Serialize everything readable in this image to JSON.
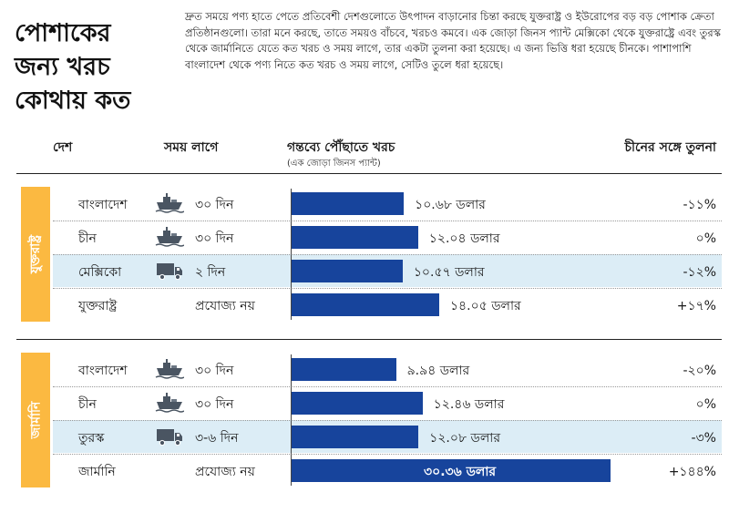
{
  "title_lines": [
    "পোশাকের",
    "জন্য খরচ",
    "কোথায় কত"
  ],
  "intro": "দ্রুত সময়ে পণ্য হাতে পেতে প্রতিবেশী দেশগুলোতে উৎপাদন বাড়ানোর চিন্তা করছে যুক্তরাষ্ট্র ও ইউরোপের বড় বড় পোশাক ক্রেতা প্রতিষ্ঠানগুলো। তারা মনে করছে, তাতে সময়ও বাঁচবে, খরচও কমবে। এক জোড়া জিনস প্যান্ট মেক্সিকো থেকে যুক্তরাষ্ট্রে এবং তুরস্ক থেকে জার্মানিতে যেতে কত খরচ ও সময় লাগে, তার একটা তুলনা করা হয়েছে। এ জন্য ভিত্তি ধরা হয়েছে চীনকে। পাশাপাশি বাংলাদেশ থেকে পণ্য নিতে কত খরচ ও সময় লাগে, সেটিও তুলে ধরা হয়েছে।",
  "headers": {
    "country": "দেশ",
    "time": "সময় লাগে",
    "cost": "গন্তব্যে পৌঁছাতে খরচ",
    "cost_sub": "(এক জোড়া জিনস প্যান্ট)",
    "compare": "চীনের সঙ্গে তুলনা"
  },
  "colors": {
    "bar": "#17449c",
    "tab": "#fbb941",
    "highlight": "#dcedf6"
  },
  "chart_data": {
    "type": "bar",
    "orientation": "horizontal",
    "unit": "ডলার",
    "groups": [
      {
        "name": "যুক্তরাষ্ট্র",
        "rows": [
          {
            "country": "বাংলাদেশ",
            "icon": "ship-icon",
            "time": "৩০ দিন",
            "cost": 10.68,
            "cost_label": "১০.৬৮ ডলার",
            "compare": "-১১%",
            "highlight": false
          },
          {
            "country": "চীন",
            "icon": "ship-icon",
            "time": "৩০ দিন",
            "cost": 12.04,
            "cost_label": "১২.০৪ ডলার",
            "compare": "০%",
            "highlight": false
          },
          {
            "country": "মেক্সিকো",
            "icon": "truck-icon",
            "time": "২ দিন",
            "cost": 10.57,
            "cost_label": "১০.৫৭ ডলার",
            "compare": "-১২%",
            "highlight": true
          },
          {
            "country": "যুক্তরাষ্ট্র",
            "icon": "",
            "time": "প্রযোজ্য নয়",
            "cost": 14.05,
            "cost_label": "১৪.০৫ ডলার",
            "compare": "+১৭%",
            "highlight": false
          }
        ]
      },
      {
        "name": "জার্মানি",
        "rows": [
          {
            "country": "বাংলাদেশ",
            "icon": "ship-icon",
            "time": "৩০ দিন",
            "cost": 9.94,
            "cost_label": "৯.৯৪ ডলার",
            "compare": "-২০%",
            "highlight": false
          },
          {
            "country": "চীন",
            "icon": "ship-icon",
            "time": "৩০ দিন",
            "cost": 12.46,
            "cost_label": "১২.৪৬ ডলার",
            "compare": "০%",
            "highlight": false
          },
          {
            "country": "তুরস্ক",
            "icon": "truck-icon",
            "time": "৩-৬ দিন",
            "cost": 12.08,
            "cost_label": "১২.০৮ ডলার",
            "compare": "-৩%",
            "highlight": true
          },
          {
            "country": "জার্মানি",
            "icon": "",
            "time": "প্রযোজ্য নয়",
            "cost": 30.36,
            "cost_label": "৩০.৩৬ ডলার",
            "compare": "+১৪৪%",
            "highlight": false
          }
        ]
      }
    ]
  }
}
